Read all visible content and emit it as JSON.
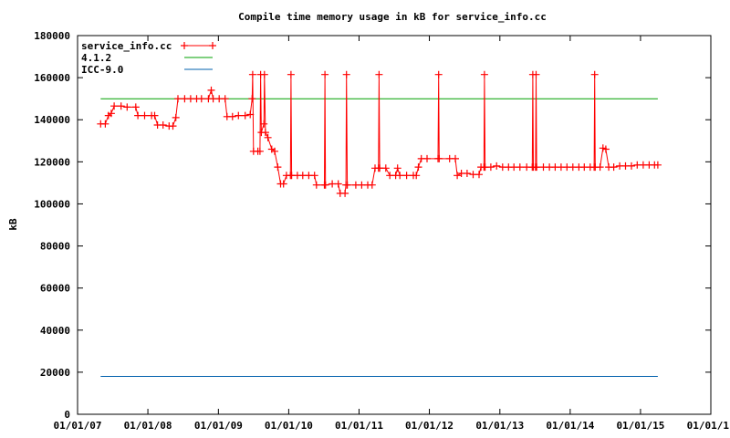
{
  "chart_data": {
    "type": "line",
    "title": "Compile time memory usage in kB for service_info.cc",
    "xlabel": "",
    "ylabel": "kB",
    "xlim": [
      "2007-01-01",
      "2016-01-01"
    ],
    "ylim": [
      0,
      180000
    ],
    "x_ticks": [
      "01/01/07",
      "01/01/08",
      "01/01/09",
      "01/01/10",
      "01/01/11",
      "01/01/12",
      "01/01/13",
      "01/01/14",
      "01/01/15",
      "01/01/1"
    ],
    "x_tick_dates": [
      "2007-01-01",
      "2008-01-01",
      "2009-01-01",
      "2010-01-01",
      "2011-01-01",
      "2012-01-01",
      "2013-01-01",
      "2014-01-01",
      "2015-01-01",
      "2016-01-01"
    ],
    "y_ticks": [
      "0",
      "20000",
      "40000",
      "60000",
      "80000",
      "100000",
      "120000",
      "140000",
      "160000",
      "180000"
    ],
    "y_tick_values": [
      0,
      20000,
      40000,
      60000,
      80000,
      100000,
      120000,
      140000,
      160000,
      180000
    ],
    "grid": false,
    "legend_position": "top-left",
    "series": [
      {
        "name": "service_info.cc",
        "color": "#ff0000",
        "marker": "plus",
        "points": [
          [
            "2007-05-01",
            138000
          ],
          [
            "2007-05-25",
            138000
          ],
          [
            "2007-06-10",
            142000
          ],
          [
            "2007-06-25",
            143000
          ],
          [
            "2007-07-10",
            146500
          ],
          [
            "2007-08-15",
            146500
          ],
          [
            "2007-09-15",
            146000
          ],
          [
            "2007-10-30",
            146000
          ],
          [
            "2007-11-10",
            142000
          ],
          [
            "2007-12-15",
            142000
          ],
          [
            "2008-01-20",
            142000
          ],
          [
            "2008-02-05",
            142000
          ],
          [
            "2008-02-20",
            137500
          ],
          [
            "2008-03-20",
            137500
          ],
          [
            "2008-04-20",
            137000
          ],
          [
            "2008-05-10",
            137000
          ],
          [
            "2008-05-25",
            141000
          ],
          [
            "2008-06-05",
            150000
          ],
          [
            "2008-07-10",
            150000
          ],
          [
            "2008-08-10",
            150000
          ],
          [
            "2008-09-10",
            150000
          ],
          [
            "2008-10-05",
            150000
          ],
          [
            "2008-11-10",
            150000
          ],
          [
            "2008-11-25",
            154000
          ],
          [
            "2008-12-05",
            150000
          ],
          [
            "2009-01-05",
            150000
          ],
          [
            "2009-02-05",
            150000
          ],
          [
            "2009-02-15",
            141500
          ],
          [
            "2009-03-15",
            141500
          ],
          [
            "2009-04-15",
            142000
          ],
          [
            "2009-05-20",
            142000
          ],
          [
            "2009-06-15",
            142500
          ],
          [
            "2009-06-25",
            150000
          ],
          [
            "2009-06-28",
            161500
          ],
          [
            "2009-07-02",
            125000
          ],
          [
            "2009-07-25",
            125000
          ],
          [
            "2009-08-05",
            125000
          ],
          [
            "2009-08-08",
            161500
          ],
          [
            "2009-08-12",
            134000
          ],
          [
            "2009-08-25",
            138000
          ],
          [
            "2009-08-28",
            161500
          ],
          [
            "2009-09-02",
            134000
          ],
          [
            "2009-09-15",
            131500
          ],
          [
            "2009-10-05",
            126000
          ],
          [
            "2009-10-20",
            125000
          ],
          [
            "2009-11-05",
            117500
          ],
          [
            "2009-11-20",
            109500
          ],
          [
            "2009-12-05",
            109500
          ],
          [
            "2009-12-20",
            113500
          ],
          [
            "2010-01-10",
            113500
          ],
          [
            "2010-01-13",
            161500
          ],
          [
            "2010-01-16",
            113500
          ],
          [
            "2010-02-15",
            113500
          ],
          [
            "2010-03-15",
            113500
          ],
          [
            "2010-04-15",
            113500
          ],
          [
            "2010-05-15",
            113500
          ],
          [
            "2010-05-25",
            109000
          ],
          [
            "2010-07-05",
            109000
          ],
          [
            "2010-07-08",
            161500
          ],
          [
            "2010-07-11",
            109000
          ],
          [
            "2010-08-15",
            109500
          ],
          [
            "2010-09-15",
            109500
          ],
          [
            "2010-09-25",
            105000
          ],
          [
            "2010-10-20",
            105000
          ],
          [
            "2010-10-25",
            109000
          ],
          [
            "2010-10-28",
            161500
          ],
          [
            "2010-11-01",
            109000
          ],
          [
            "2010-12-15",
            109000
          ],
          [
            "2011-01-15",
            109000
          ],
          [
            "2011-02-15",
            109000
          ],
          [
            "2011-03-10",
            109000
          ],
          [
            "2011-03-25",
            117000
          ],
          [
            "2011-04-12",
            117000
          ],
          [
            "2011-04-15",
            161500
          ],
          [
            "2011-04-18",
            117000
          ],
          [
            "2011-05-20",
            117000
          ],
          [
            "2011-06-10",
            113500
          ],
          [
            "2011-07-10",
            113500
          ],
          [
            "2011-07-20",
            117000
          ],
          [
            "2011-08-01",
            113500
          ],
          [
            "2011-09-05",
            113500
          ],
          [
            "2011-10-10",
            113500
          ],
          [
            "2011-10-25",
            113500
          ],
          [
            "2011-11-05",
            117500
          ],
          [
            "2011-11-20",
            121500
          ],
          [
            "2011-12-20",
            121500
          ],
          [
            "2012-02-15",
            121500
          ],
          [
            "2012-02-18",
            161500
          ],
          [
            "2012-02-21",
            121500
          ],
          [
            "2012-04-15",
            121500
          ],
          [
            "2012-05-15",
            121500
          ],
          [
            "2012-05-25",
            113500
          ],
          [
            "2012-06-15",
            114500
          ],
          [
            "2012-07-15",
            114500
          ],
          [
            "2012-08-15",
            114000
          ],
          [
            "2012-09-15",
            114000
          ],
          [
            "2012-09-25",
            117500
          ],
          [
            "2012-10-10",
            117500
          ],
          [
            "2012-10-13",
            161500
          ],
          [
            "2012-10-16",
            117500
          ],
          [
            "2012-11-15",
            117500
          ],
          [
            "2012-12-15",
            118000
          ],
          [
            "2013-01-15",
            117500
          ],
          [
            "2013-02-15",
            117500
          ],
          [
            "2013-03-15",
            117500
          ],
          [
            "2013-04-15",
            117500
          ],
          [
            "2013-05-20",
            117500
          ],
          [
            "2013-06-18",
            117500
          ],
          [
            "2013-06-21",
            161500
          ],
          [
            "2013-06-24",
            117500
          ],
          [
            "2013-07-05",
            117500
          ],
          [
            "2013-07-08",
            161500
          ],
          [
            "2013-07-11",
            117500
          ],
          [
            "2013-08-15",
            117500
          ],
          [
            "2013-09-15",
            117500
          ],
          [
            "2013-10-15",
            117500
          ],
          [
            "2013-11-15",
            117500
          ],
          [
            "2013-12-15",
            117500
          ],
          [
            "2014-01-15",
            117500
          ],
          [
            "2014-02-15",
            117500
          ],
          [
            "2014-03-15",
            117500
          ],
          [
            "2014-04-15",
            117500
          ],
          [
            "2014-05-05",
            117500
          ],
          [
            "2014-05-08",
            161500
          ],
          [
            "2014-05-11",
            117500
          ],
          [
            "2014-06-05",
            117500
          ],
          [
            "2014-06-20",
            126500
          ],
          [
            "2014-07-05",
            126000
          ],
          [
            "2014-07-20",
            117500
          ],
          [
            "2014-08-15",
            117500
          ],
          [
            "2014-09-15",
            118000
          ],
          [
            "2014-10-15",
            118000
          ],
          [
            "2014-11-15",
            118000
          ],
          [
            "2014-12-15",
            118500
          ],
          [
            "2015-01-15",
            118500
          ],
          [
            "2015-02-15",
            118500
          ],
          [
            "2015-03-15",
            118500
          ],
          [
            "2015-04-01",
            118500
          ]
        ]
      },
      {
        "name": "4.1.2",
        "color": "#00a000",
        "marker": "none",
        "points": [
          [
            "2007-05-01",
            150000
          ],
          [
            "2015-04-01",
            150000
          ]
        ]
      },
      {
        "name": "ICC-9.0",
        "color": "#0060ad",
        "marker": "none",
        "points": [
          [
            "2007-05-01",
            18000
          ],
          [
            "2015-04-01",
            18000
          ]
        ]
      }
    ]
  }
}
